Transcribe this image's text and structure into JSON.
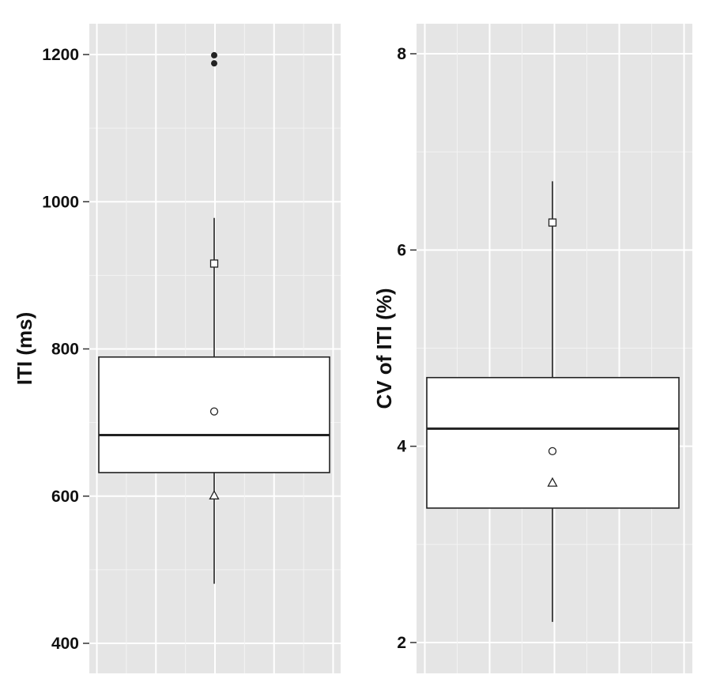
{
  "chart_data": [
    {
      "type": "boxplot",
      "ylabel": "ITI (ms)",
      "ylim": [
        380,
        1240
      ],
      "yticks": [
        400,
        600,
        800,
        1000,
        1200
      ],
      "ytick_labels": [
        "400",
        "600",
        "800",
        "1000",
        "1200"
      ],
      "grid": true,
      "box": {
        "q1": 632,
        "median": 683,
        "q3": 789,
        "whisker_low": 481,
        "whisker_high": 978
      },
      "outliers": [
        1188,
        1199
      ],
      "markers": [
        {
          "shape": "circle-open",
          "value": 715
        },
        {
          "shape": "square-open",
          "value": 916
        },
        {
          "shape": "triangle-open",
          "value": 601
        }
      ]
    },
    {
      "type": "boxplot",
      "ylabel": "CV of ITI (%)",
      "ylim": [
        1.7,
        8.3
      ],
      "yticks": [
        2,
        4,
        6,
        8
      ],
      "ytick_labels": [
        "2",
        "4",
        "6",
        "8"
      ],
      "grid": true,
      "box": {
        "q1": 3.37,
        "median": 4.18,
        "q3": 4.7,
        "whisker_low": 2.21,
        "whisker_high": 6.7
      },
      "outliers": [],
      "markers": [
        {
          "shape": "circle-open",
          "value": 3.95
        },
        {
          "shape": "square-open",
          "value": 6.28
        },
        {
          "shape": "triangle-open",
          "value": 3.63
        }
      ]
    }
  ]
}
